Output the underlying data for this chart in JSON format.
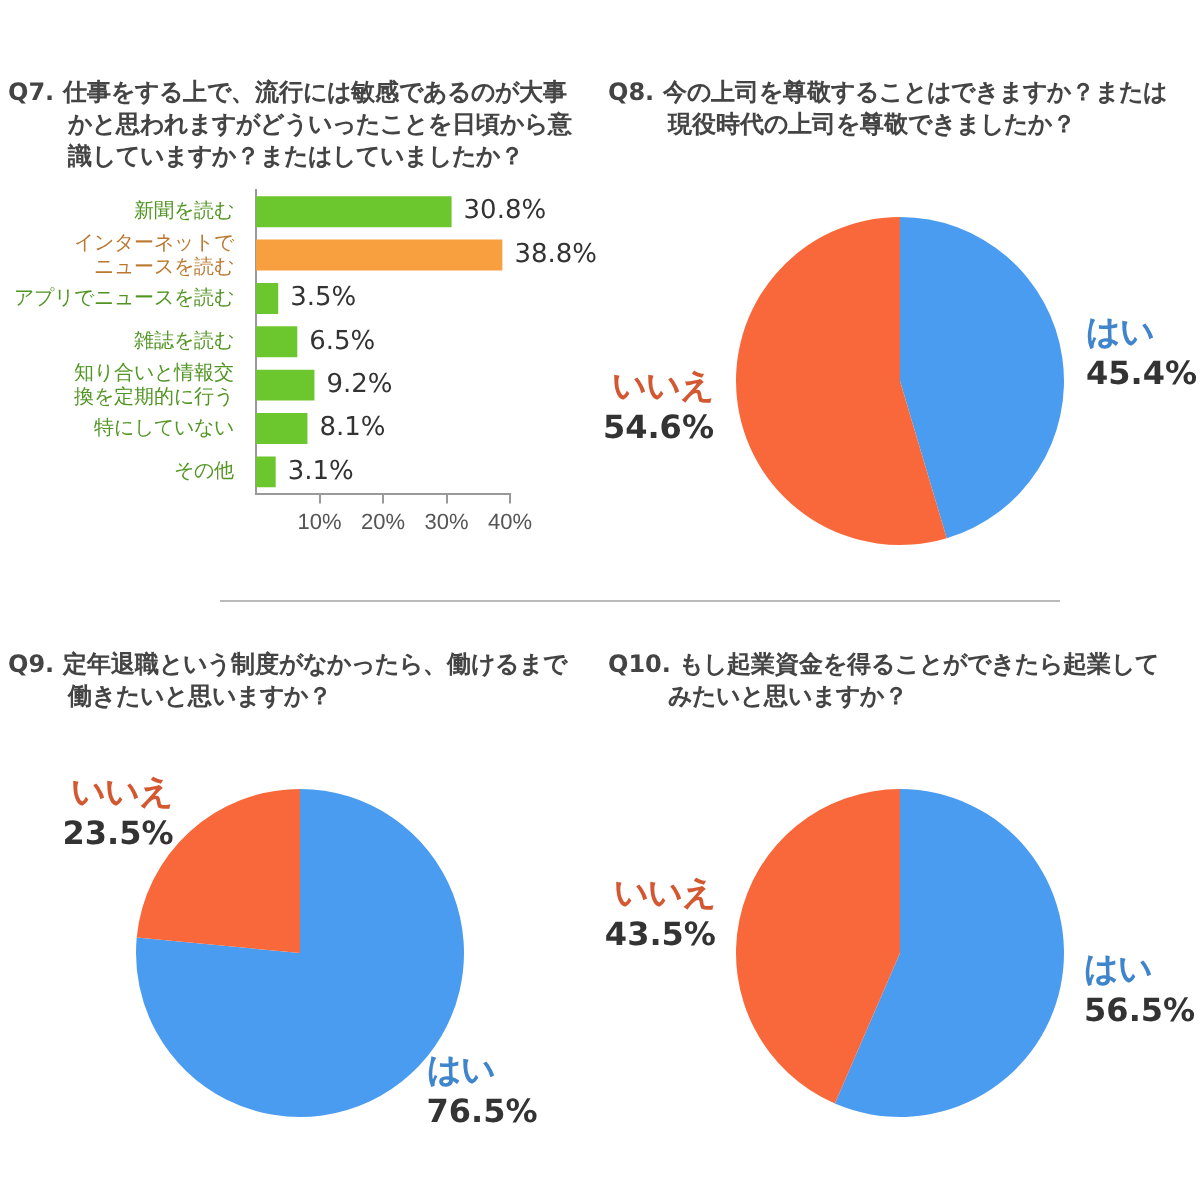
{
  "chart_data": [
    {
      "type": "bar",
      "orientation": "horizontal",
      "title": "Q7. 仕事をする上で、流行には敏感であるのが大事かと思われますがどういったことを日頃から意識していますか？またはしていましたか？",
      "categories": [
        "新聞を読む",
        "インターネットでニュースを読む",
        "アプリでニュースを読む",
        "雑誌を読む",
        "知り合いと情報交換を定期的に行う",
        "特にしていない",
        "その他"
      ],
      "values": [
        30.8,
        38.8,
        3.5,
        6.5,
        9.2,
        8.1,
        3.1
      ],
      "colors": [
        "#6cc62e",
        "#f8a040",
        "#6cc62e",
        "#6cc62e",
        "#6cc62e",
        "#6cc62e",
        "#6cc62e"
      ],
      "value_labels": [
        "30.8%",
        "38.8%",
        "3.5%",
        "6.5%",
        "9.2%",
        "8.1%",
        "3.1%"
      ],
      "xlim": [
        0,
        40
      ],
      "xticks": [
        {
          "value": 10,
          "label": "10%"
        },
        {
          "value": 20,
          "label": "20%"
        },
        {
          "value": 30,
          "label": "30%"
        },
        {
          "value": 40,
          "label": "40%"
        }
      ]
    },
    {
      "type": "pie",
      "title": "Q8. 今の上司を尊敬することはできますか？または現役時代の上司を尊敬できましたか？",
      "categories": [
        "はい",
        "いいえ"
      ],
      "values": [
        45.4,
        54.6
      ],
      "colors": [
        "#4a9cf0",
        "#f8683a"
      ],
      "value_labels": [
        "45.4%",
        "54.6%"
      ]
    },
    {
      "type": "pie",
      "title": "Q9. 定年退職という制度がなかったら、働けるまで働きたいと思いますか？",
      "categories": [
        "はい",
        "いいえ"
      ],
      "values": [
        76.5,
        23.5
      ],
      "colors": [
        "#4a9cf0",
        "#f8683a"
      ],
      "value_labels": [
        "76.5%",
        "23.5%"
      ]
    },
    {
      "type": "pie",
      "title": "Q10. もし起業資金を得ることができたら起業してみたいと思いますか？",
      "categories": [
        "はい",
        "いいえ"
      ],
      "values": [
        56.5,
        43.5
      ],
      "colors": [
        "#4a9cf0",
        "#f8683a"
      ],
      "value_labels": [
        "56.5%",
        "43.5%"
      ]
    }
  ]
}
